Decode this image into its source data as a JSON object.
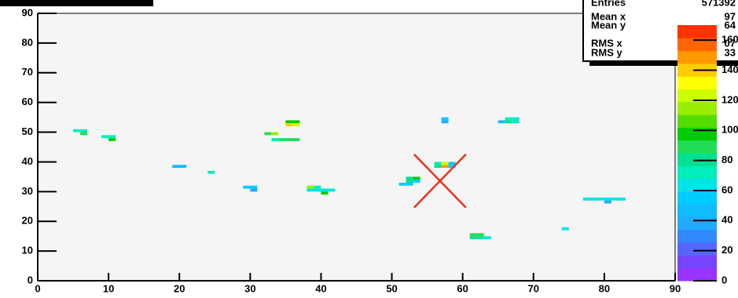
{
  "chart_data": {
    "type": "heatmap",
    "xlim": [
      0,
      90
    ],
    "xticks": [
      0,
      10,
      20,
      30,
      40,
      50,
      60,
      70,
      80,
      90
    ],
    "ylim": [
      0,
      90
    ],
    "yticks": [
      0,
      10,
      20,
      30,
      40,
      50,
      60,
      70,
      80,
      90
    ],
    "zlim": [
      0,
      170
    ],
    "zticks": [
      0,
      20,
      40,
      60,
      80,
      100,
      120,
      140,
      160
    ],
    "palette": [
      "#9933ff",
      "#7744ff",
      "#5566ff",
      "#3388ff",
      "#22aaff",
      "#11bbff",
      "#00ccff",
      "#00e5e5",
      "#00eebb",
      "#00e090",
      "#22dd55",
      "#00cc00",
      "#55dd00",
      "#99ee00",
      "#ccff00",
      "#ffff00",
      "#ffcc00",
      "#ff9900",
      "#ff6600",
      "#ff3300"
    ],
    "x": [
      5,
      6,
      6,
      9,
      10,
      10,
      19,
      20,
      24,
      29,
      30,
      30,
      32,
      33,
      33,
      34,
      35,
      36,
      35,
      36,
      35,
      36,
      38,
      39,
      38,
      39,
      40,
      41,
      40,
      51,
      52,
      52,
      53,
      52,
      53,
      56,
      57,
      58,
      56,
      57,
      58,
      57,
      57,
      65,
      66,
      67,
      66,
      67,
      61,
      62,
      63,
      61,
      62,
      74,
      77,
      78,
      79,
      80,
      81,
      82,
      80
    ],
    "y": [
      50,
      50,
      49,
      48,
      48,
      47,
      38,
      38,
      36,
      31,
      31,
      30,
      49,
      49,
      47,
      47,
      47,
      47,
      53,
      53,
      52,
      52,
      31,
      31,
      30,
      30,
      30,
      30,
      29,
      32,
      32,
      33,
      33,
      34,
      34,
      38,
      38,
      38,
      39,
      39,
      39,
      54,
      53,
      53,
      53,
      53,
      54,
      54,
      14,
      14,
      14,
      15,
      15,
      17,
      27,
      27,
      27,
      27,
      27,
      27,
      26
    ],
    "values": [
      70,
      70,
      85,
      70,
      70,
      95,
      50,
      50,
      70,
      55,
      55,
      35,
      90,
      115,
      75,
      85,
      85,
      85,
      95,
      95,
      140,
      125,
      115,
      75,
      60,
      60,
      60,
      65,
      100,
      55,
      55,
      80,
      55,
      80,
      95,
      80,
      150,
      55,
      70,
      120,
      55,
      55,
      35,
      50,
      80,
      70,
      75,
      60,
      80,
      80,
      60,
      90,
      90,
      60,
      60,
      60,
      60,
      60,
      60,
      60,
      35
    ],
    "marker": {
      "x": 56.8,
      "y": 33.6,
      "color": "#e8341c"
    },
    "stats": [
      {
        "label": "Entries",
        "value": 571392
      },
      {
        "label": "Mean x",
        "value": "97"
      },
      {
        "label": "Mean y",
        "value": "64"
      },
      {
        "label": "RMS x",
        "value": "07"
      },
      {
        "label": "RMS y",
        "value": "33"
      }
    ]
  }
}
